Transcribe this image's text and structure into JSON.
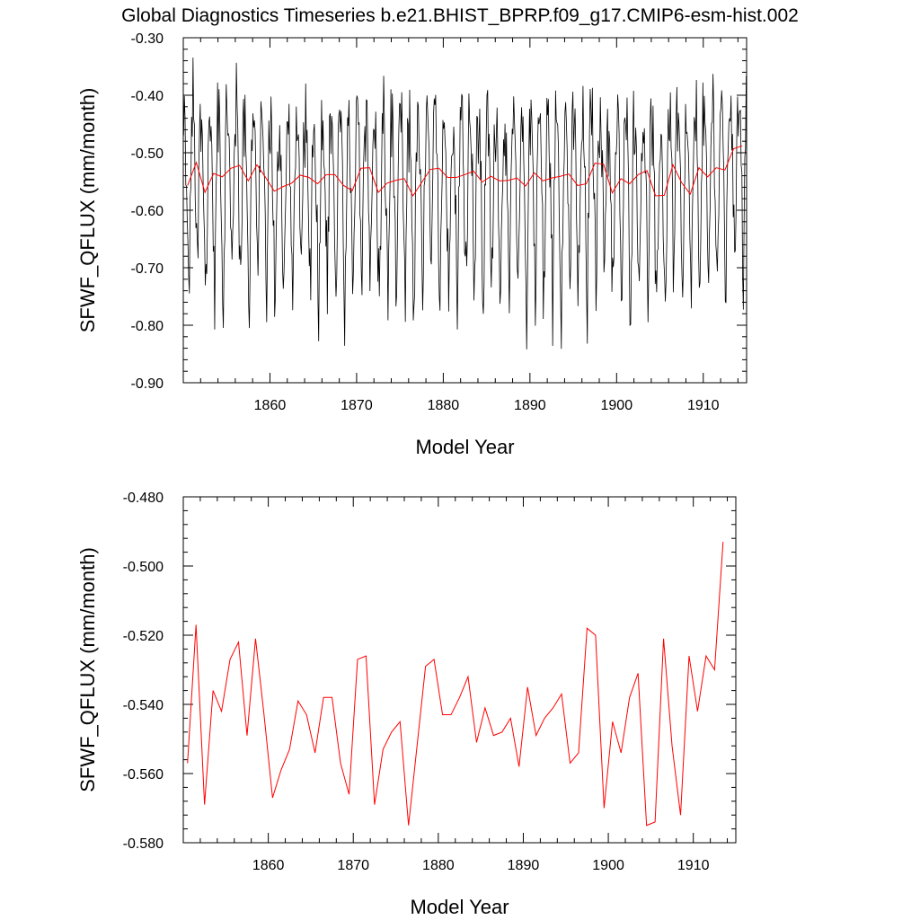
{
  "figure": {
    "title": "Global Diagnostics Timeseries b.e21.BHIST_BPRP.f09_g17.CMIP6-esm-hist.002"
  },
  "colors": {
    "monthly": "#000000",
    "annual": "#ff0000",
    "axis": "#000000",
    "background": "#ffffff"
  },
  "chart_data": [
    {
      "type": "line",
      "xlabel": "Model Year",
      "ylabel": "SFWF_QFLUX (mm/month)",
      "xlim": [
        1850,
        1915
      ],
      "ylim": [
        -0.9,
        -0.3
      ],
      "x_ticks": [
        1860,
        1870,
        1880,
        1890,
        1900,
        1910
      ],
      "y_ticks": [
        -0.9,
        -0.8,
        -0.7,
        -0.6,
        -0.5,
        -0.4,
        -0.3
      ],
      "y_tick_labels": [
        "-0.90",
        "-0.80",
        "-0.70",
        "-0.60",
        "-0.50",
        "-0.40",
        "-0.30"
      ],
      "grid": false,
      "series": [
        {
          "role": "monthly",
          "color": "#000000",
          "x_start": 1850.04,
          "x_step": 0.0833333,
          "monthly_cycle": [
            0.07,
            0.1,
            0.08,
            0.03,
            -0.02,
            -0.09,
            -0.15,
            -0.18,
            -0.12,
            -0.05,
            0.04,
            0.09
          ],
          "annual_means_ref": "annual"
        },
        {
          "role": "annual",
          "color": "#ff0000",
          "x": [
            1850.5,
            1851.5,
            1852.5,
            1853.5,
            1854.5,
            1855.5,
            1856.5,
            1857.5,
            1858.5,
            1859.5,
            1860.5,
            1861.5,
            1862.5,
            1863.5,
            1864.5,
            1865.5,
            1866.5,
            1867.5,
            1868.5,
            1869.5,
            1870.5,
            1871.5,
            1872.5,
            1873.5,
            1874.5,
            1875.5,
            1876.5,
            1877.5,
            1878.5,
            1879.5,
            1880.5,
            1881.5,
            1882.5,
            1883.5,
            1884.5,
            1885.5,
            1886.5,
            1887.5,
            1888.5,
            1889.5,
            1890.5,
            1891.5,
            1892.5,
            1893.5,
            1894.5,
            1895.5,
            1896.5,
            1897.5,
            1898.5,
            1899.5,
            1900.5,
            1901.5,
            1902.5,
            1903.5,
            1904.5,
            1905.5,
            1906.5,
            1907.5,
            1908.5,
            1909.5,
            1910.5,
            1911.5,
            1912.5,
            1913.5,
            1914.5
          ],
          "y": [
            -0.557,
            -0.517,
            -0.569,
            -0.536,
            -0.542,
            -0.527,
            -0.522,
            -0.549,
            -0.521,
            -0.543,
            -0.567,
            -0.559,
            -0.553,
            -0.539,
            -0.543,
            -0.554,
            -0.538,
            -0.538,
            -0.557,
            -0.566,
            -0.527,
            -0.526,
            -0.569,
            -0.553,
            -0.548,
            -0.545,
            -0.575,
            -0.552,
            -0.529,
            -0.527,
            -0.543,
            -0.543,
            -0.538,
            -0.532,
            -0.551,
            -0.541,
            -0.549,
            -0.548,
            -0.544,
            -0.558,
            -0.535,
            -0.549,
            -0.544,
            -0.541,
            -0.537,
            -0.557,
            -0.554,
            -0.518,
            -0.52,
            -0.57,
            -0.545,
            -0.554,
            -0.538,
            -0.531,
            -0.575,
            -0.574,
            -0.521,
            -0.552,
            -0.572,
            -0.526,
            -0.542,
            -0.526,
            -0.53,
            -0.493,
            -0.488
          ]
        }
      ]
    },
    {
      "type": "line",
      "xlabel": "Model Year",
      "ylabel": "SFWF_QFLUX (mm/month)",
      "xlim": [
        1850,
        1915
      ],
      "ylim": [
        -0.58,
        -0.48
      ],
      "x_ticks": [
        1860,
        1870,
        1880,
        1890,
        1900,
        1910
      ],
      "y_ticks": [
        -0.58,
        -0.56,
        -0.54,
        -0.52,
        -0.5,
        -0.48
      ],
      "y_tick_labels": [
        "-0.580",
        "-0.560",
        "-0.540",
        "-0.520",
        "-0.500",
        "-0.480"
      ],
      "grid": false,
      "series": [
        {
          "role": "annual",
          "color": "#ff0000",
          "x": [
            1850.5,
            1851.5,
            1852.5,
            1853.5,
            1854.5,
            1855.5,
            1856.5,
            1857.5,
            1858.5,
            1859.5,
            1860.5,
            1861.5,
            1862.5,
            1863.5,
            1864.5,
            1865.5,
            1866.5,
            1867.5,
            1868.5,
            1869.5,
            1870.5,
            1871.5,
            1872.5,
            1873.5,
            1874.5,
            1875.5,
            1876.5,
            1877.5,
            1878.5,
            1879.5,
            1880.5,
            1881.5,
            1882.5,
            1883.5,
            1884.5,
            1885.5,
            1886.5,
            1887.5,
            1888.5,
            1889.5,
            1890.5,
            1891.5,
            1892.5,
            1893.5,
            1894.5,
            1895.5,
            1896.5,
            1897.5,
            1898.5,
            1899.5,
            1900.5,
            1901.5,
            1902.5,
            1903.5,
            1904.5,
            1905.5,
            1906.5,
            1907.5,
            1908.5,
            1909.5,
            1910.5,
            1911.5,
            1912.5,
            1913.5
          ],
          "y": [
            -0.557,
            -0.517,
            -0.569,
            -0.536,
            -0.542,
            -0.527,
            -0.522,
            -0.549,
            -0.521,
            -0.543,
            -0.567,
            -0.559,
            -0.553,
            -0.539,
            -0.543,
            -0.554,
            -0.538,
            -0.538,
            -0.557,
            -0.566,
            -0.527,
            -0.526,
            -0.569,
            -0.553,
            -0.548,
            -0.545,
            -0.575,
            -0.552,
            -0.529,
            -0.527,
            -0.543,
            -0.543,
            -0.538,
            -0.532,
            -0.551,
            -0.541,
            -0.549,
            -0.548,
            -0.544,
            -0.558,
            -0.535,
            -0.549,
            -0.544,
            -0.541,
            -0.537,
            -0.557,
            -0.554,
            -0.518,
            -0.52,
            -0.57,
            -0.545,
            -0.554,
            -0.538,
            -0.531,
            -0.575,
            -0.574,
            -0.521,
            -0.552,
            -0.572,
            -0.526,
            -0.542,
            -0.526,
            -0.53,
            -0.493
          ]
        }
      ]
    }
  ]
}
